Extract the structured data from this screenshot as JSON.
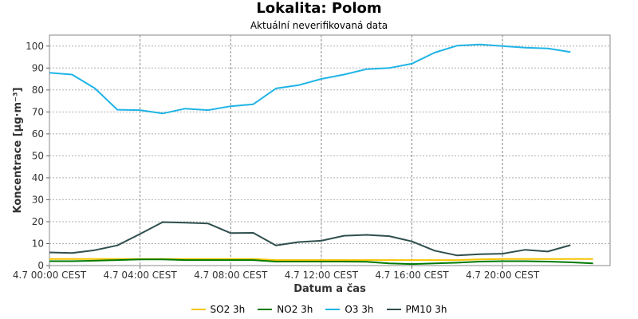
{
  "chart_data": {
    "type": "line",
    "title": "Lokalita: Polom",
    "subtitle": "Aktuální neverifikovaná data",
    "xlabel": "Datum a čas",
    "ylabel": "Koncentrace [µg·m⁻³]",
    "ylim": [
      0,
      105
    ],
    "yticks": [
      0,
      10,
      20,
      30,
      40,
      50,
      60,
      70,
      80,
      90,
      100
    ],
    "xlim": [
      0,
      24.75
    ],
    "xticks": [
      {
        "x": 0,
        "label": "4.7 00:00 CEST"
      },
      {
        "x": 4,
        "label": "4.7 04:00 CEST"
      },
      {
        "x": 8,
        "label": "4.7 08:00 CEST"
      },
      {
        "x": 12,
        "label": "4.7 12:00 CEST"
      },
      {
        "x": 16,
        "label": "4.7 16:00 CEST"
      },
      {
        "x": 20,
        "label": "4.7 20:00 CEST"
      }
    ],
    "x": [
      0,
      1,
      2,
      3,
      4,
      5,
      6,
      7,
      8,
      9,
      10,
      11,
      12,
      13,
      14,
      15,
      16,
      17,
      18,
      19,
      20,
      21,
      22,
      23,
      24
    ],
    "grid": true,
    "legend_position": "bottom",
    "series": [
      {
        "name": "SO2 3h",
        "color": "#f5c400",
        "values": [
          3.0,
          3.0,
          3.0,
          3.0,
          3.0,
          3.0,
          3.0,
          3.0,
          3.0,
          3.0,
          2.5,
          2.5,
          2.5,
          2.5,
          2.5,
          2.5,
          2.5,
          2.5,
          2.5,
          2.8,
          3.0,
          3.0,
          3.0,
          3.0,
          3.0
        ]
      },
      {
        "name": "NO2 3h",
        "color": "#007a00",
        "values": [
          2.0,
          2.0,
          2.2,
          2.5,
          2.8,
          2.8,
          2.5,
          2.5,
          2.5,
          2.5,
          1.8,
          1.8,
          1.8,
          1.8,
          1.7,
          1.0,
          0.7,
          1.0,
          1.3,
          1.8,
          2.0,
          2.0,
          1.8,
          1.5,
          1.0
        ]
      },
      {
        "name": "O3 3h",
        "color": "#1fb4e6",
        "values": [
          87.8,
          87.0,
          80.8,
          71.0,
          70.8,
          69.3,
          71.5,
          70.8,
          72.6,
          73.5,
          80.7,
          82.2,
          85.0,
          87.0,
          89.5,
          90.0,
          92.0,
          97.0,
          100.2,
          100.7,
          100.0,
          99.3,
          98.9,
          97.3,
          null
        ]
      },
      {
        "name": "PM10 3h",
        "color": "#2f4f4f",
        "values": [
          6.0,
          5.7,
          7.0,
          9.2,
          14.4,
          19.8,
          19.5,
          19.2,
          14.8,
          14.9,
          9.2,
          10.7,
          11.3,
          13.6,
          14.0,
          13.4,
          11.0,
          6.8,
          4.6,
          5.2,
          5.4,
          7.2,
          6.4,
          9.3,
          null
        ]
      }
    ]
  }
}
